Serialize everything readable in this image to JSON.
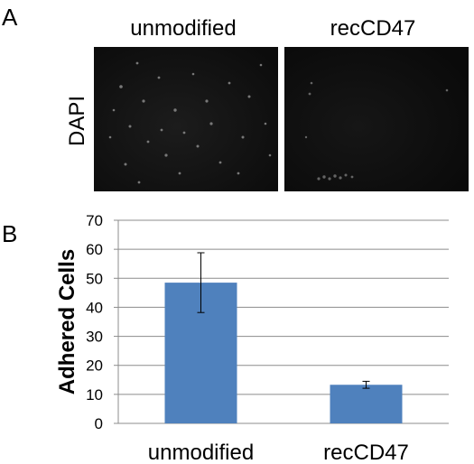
{
  "panel_a": {
    "letter": "A",
    "row_label": "DAPI",
    "columns": [
      {
        "label": "unmodified"
      },
      {
        "label": "recCD47"
      }
    ]
  },
  "panel_b": {
    "letter": "B"
  },
  "chart_data": {
    "type": "bar",
    "categories": [
      "unmodified",
      "recCD47"
    ],
    "values": [
      48.5,
      13.3
    ],
    "error": [
      10.3,
      1.2
    ],
    "ylabel": "Adhered Cells",
    "xlabel": "",
    "ylim": [
      0,
      70
    ],
    "yticks": [
      0,
      10,
      20,
      30,
      40,
      50,
      60,
      70
    ],
    "grid": true,
    "bar_color": "#4F81BD"
  }
}
